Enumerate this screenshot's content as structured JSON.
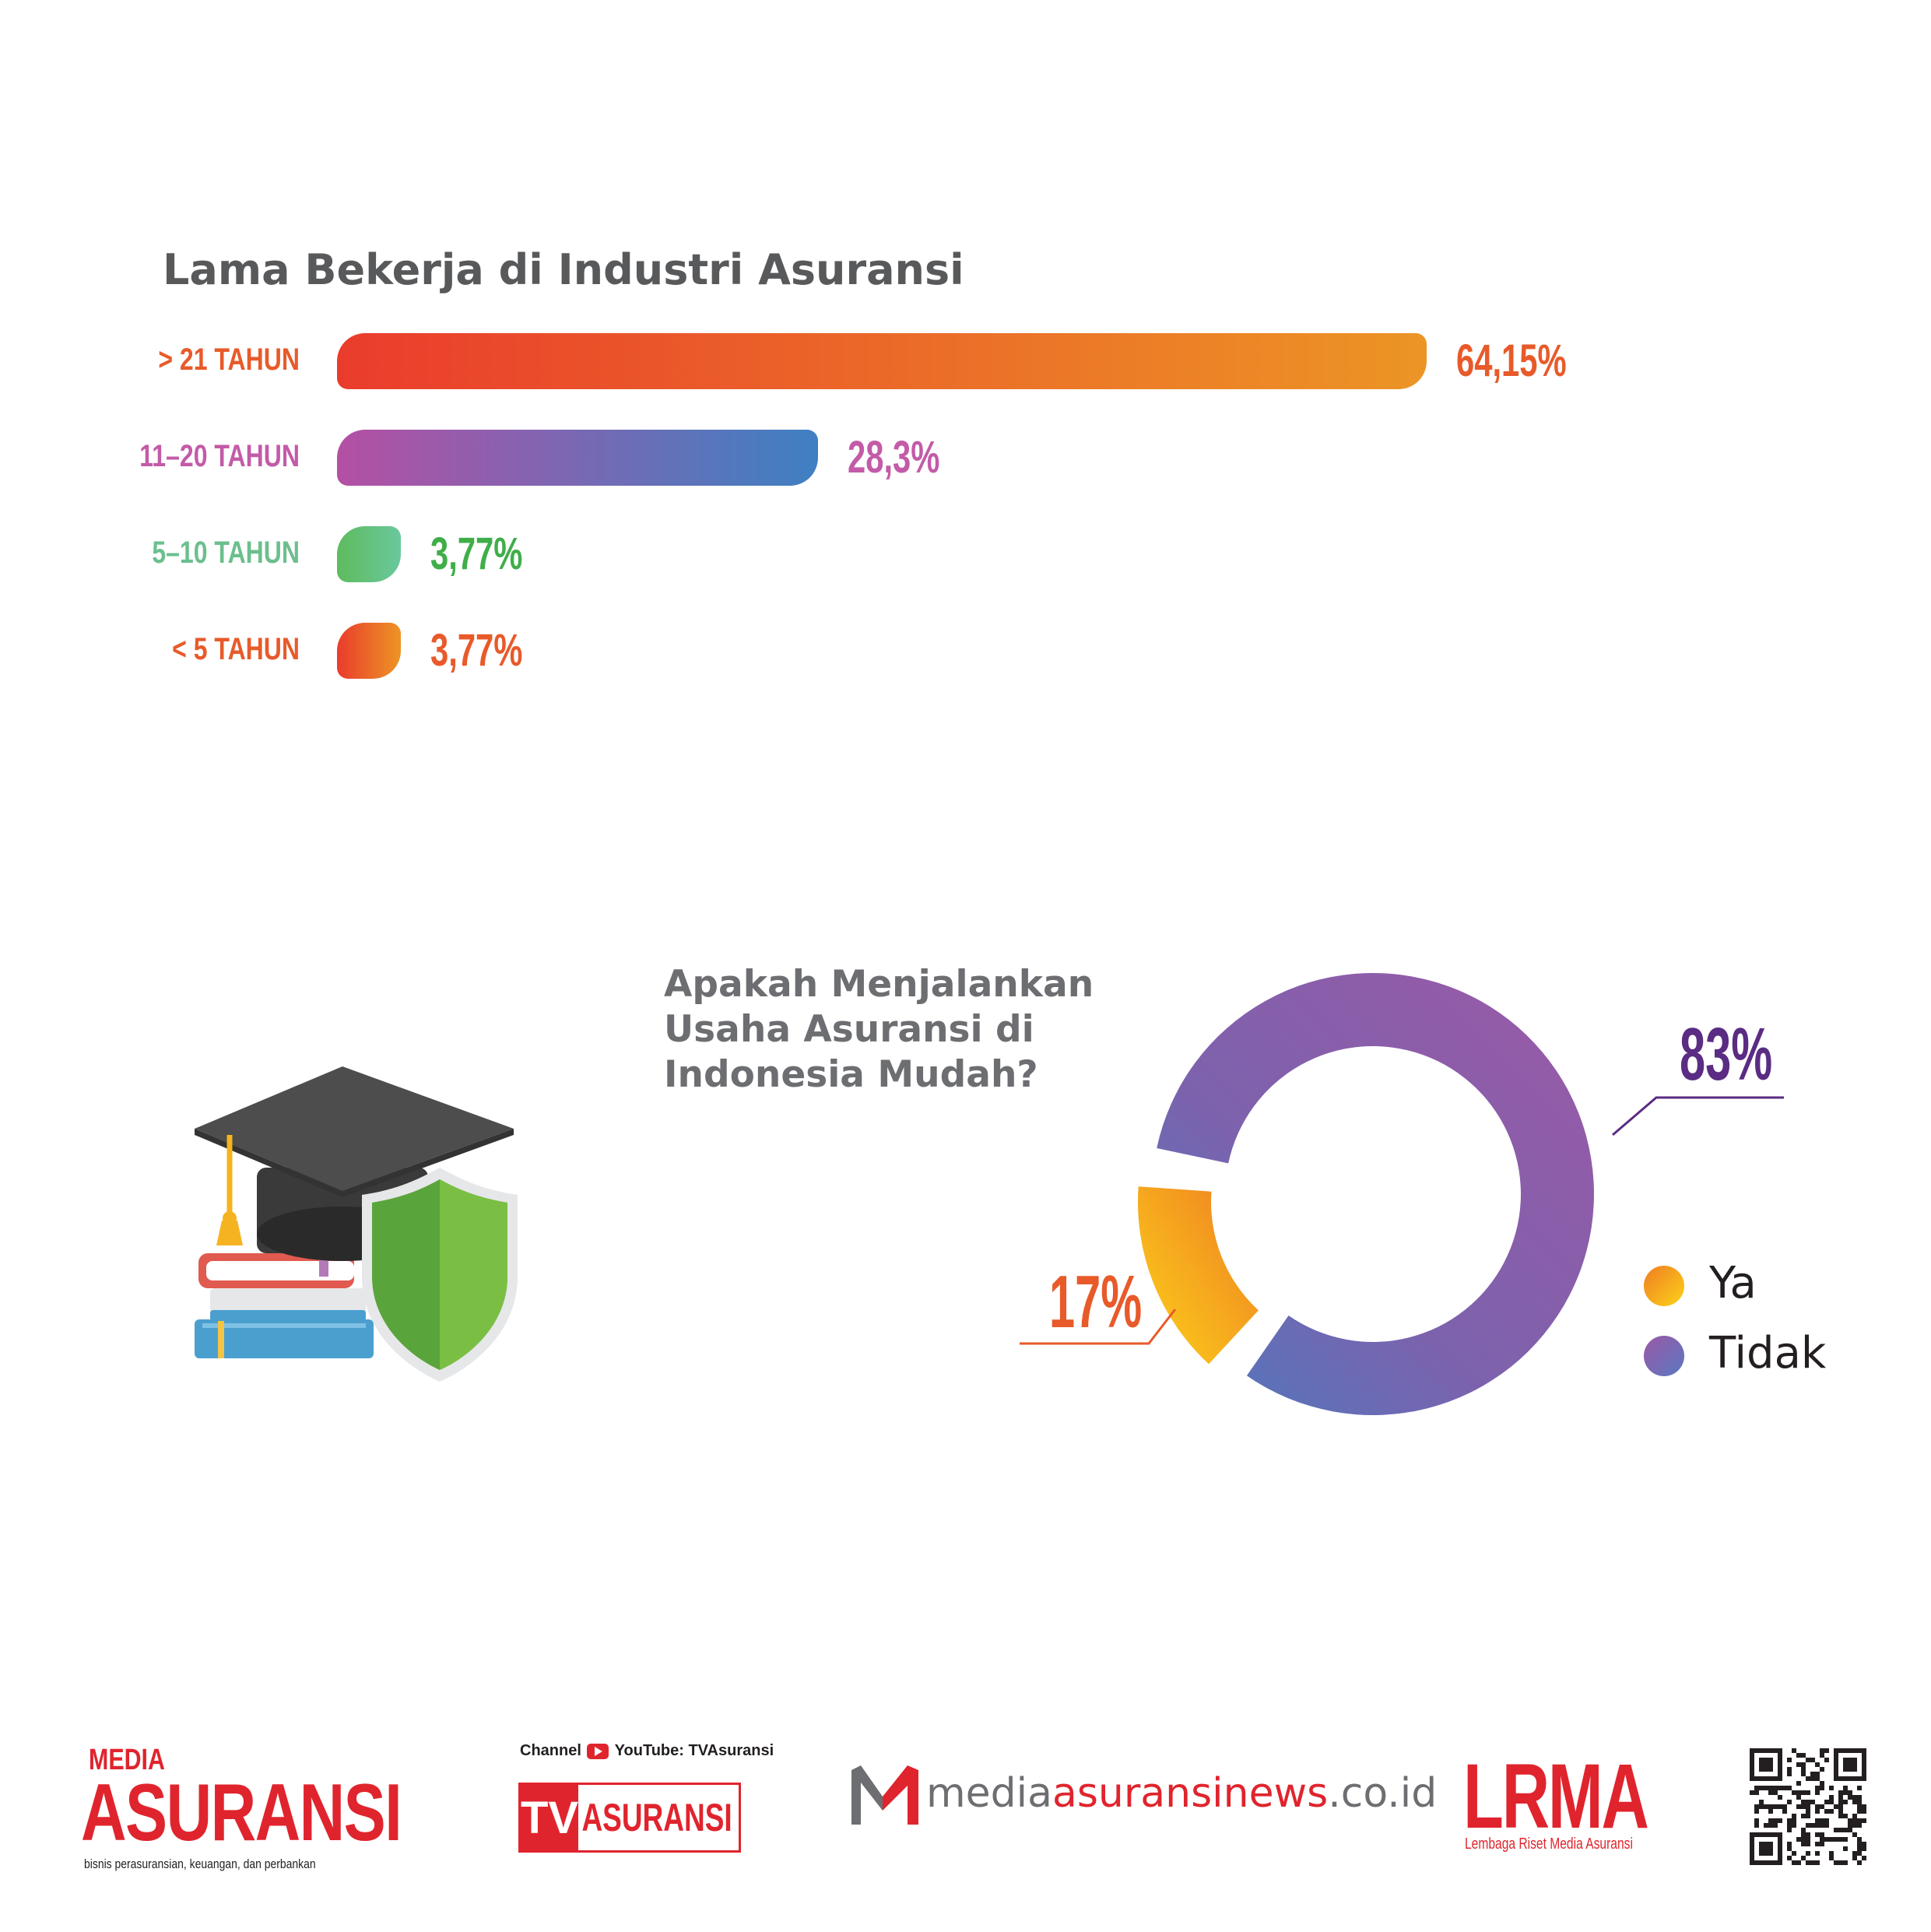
{
  "chart_data": [
    {
      "type": "bar",
      "orientation": "horizontal",
      "title": "Lama Bekerja di Industri Asuransi",
      "categories": [
        "> 21 TAHUN",
        "11–20 TAHUN",
        "5–10 TAHUN",
        "< 5 TAHUN"
      ],
      "values": [
        64.15,
        28.3,
        3.77,
        3.77
      ],
      "value_labels": [
        "64,15%",
        "28,3%",
        "3,77%",
        "3,77%"
      ],
      "colors": [
        [
          "#ea3c2c",
          "#ec9525"
        ],
        [
          "#b450a4",
          "#3e80c2"
        ],
        [
          "#5ebb5e",
          "#6ac89c"
        ],
        [
          "#ea3c2c",
          "#ec9525"
        ]
      ],
      "label_colors": [
        "#e85a2a",
        "#c35ba8",
        "#6cbf8e",
        "#e85a2a"
      ],
      "value_colors": [
        "#e85a2a",
        "#c35ba8",
        "#3fae49",
        "#e85a2a"
      ]
    },
    {
      "type": "pie",
      "title": "Apakah Menjalankan Usaha Asuransi di Indonesia Mudah?",
      "categories": [
        "Ya",
        "Tidak"
      ],
      "values": [
        17,
        83
      ],
      "value_labels": [
        "17%",
        "83%"
      ],
      "colors": [
        "#f6a21f",
        "#8a5aa8"
      ],
      "label_colors": [
        "#e85a2a",
        "#5b2c83"
      ],
      "legend": "right"
    }
  ],
  "footer": {
    "media_top": "MEDIA",
    "media_main": "ASURANSI",
    "media_tagline": "bisnis perasuransian, keuangan, dan perbankan",
    "tv_channel": "Channel",
    "tv_youtube": "YouTube: TVAsuransi",
    "tv_prefix": "TV",
    "tv_main": "ASURANSI",
    "site_prefix": "media",
    "site_main": "asuransinews",
    "site_suffix": ".co.id",
    "lrma": "LRMA",
    "lrma_tagline": "Lembaga Riset Media Asuransi"
  },
  "colors": {
    "brand_red": "#e0242d",
    "title_gray": "#58595b"
  }
}
